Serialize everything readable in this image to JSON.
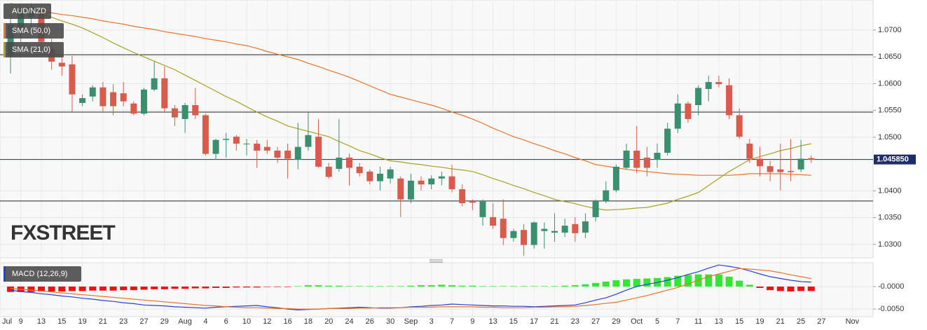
{
  "chart_data": [
    {
      "type": "candlestick",
      "title": "AUD/NZD",
      "watermark": "FXSTREET",
      "categories": [
        "Jul",
        null,
        "9",
        null,
        "13",
        null,
        "15",
        null,
        "19",
        null,
        "21",
        null,
        "23",
        null,
        "27",
        null,
        "29",
        null,
        "Aug",
        null,
        "4",
        null,
        "6",
        null,
        "10",
        null,
        "12",
        null,
        "16",
        null,
        "18",
        null,
        "20",
        null,
        "24",
        null,
        "26",
        null,
        "30",
        null,
        "Sep",
        null,
        "3",
        null,
        "7",
        null,
        "9",
        null,
        "13",
        null,
        "15",
        null,
        "17",
        null,
        "21",
        null,
        "23",
        null,
        "27",
        null,
        "29",
        null,
        "Oct",
        null,
        "5",
        null,
        "7",
        null,
        "11",
        null,
        "13",
        null,
        "15",
        null,
        "19",
        null,
        "21",
        null,
        "25",
        null,
        "27",
        null,
        null,
        "Nov"
      ],
      "open": [
        null,
        1.0652,
        1.0704,
        1.0724,
        1.0737,
        1.0665,
        1.0639,
        1.0636,
        1.0564,
        1.0576,
        1.0593,
        1.0584,
        1.0582,
        1.0563,
        1.0544,
        1.0589,
        1.061,
        1.0554,
        1.0534,
        1.056,
        1.0541,
        1.0469,
        1.0495,
        1.0501,
        1.0487,
        1.0488,
        1.0482,
        1.0475,
        1.0475,
        1.0458,
        1.0482,
        1.0501,
        1.0445,
        1.0441,
        1.0462,
        1.0445,
        1.0436,
        1.0418,
        1.0423,
        1.0423,
        1.0384,
        1.0419,
        1.0412,
        1.0423,
        1.0427,
        1.0403,
        1.0381,
        1.0351,
        1.0351,
        1.0348,
        1.0312,
        1.0327,
        1.0299,
        1.0325,
        1.0322,
        1.0322,
        1.0338,
        1.0322,
        1.0351,
        1.0381,
        1.0401,
        1.0443,
        1.0475,
        1.0462,
        1.0458,
        1.0471,
        1.0516,
        1.0563,
        1.056,
        1.059,
        1.0603,
        1.0597,
        1.0541,
        1.0488,
        1.046,
        1.0446,
        1.044,
        1.0437,
        1.044,
        1.0461,
        null,
        null,
        null,
        null
      ],
      "high": [
        null,
        1.073,
        1.0743,
        1.075,
        1.0743,
        1.0684,
        1.0652,
        1.0652,
        1.058,
        1.0597,
        1.0603,
        1.0599,
        1.0603,
        1.0567,
        1.0592,
        1.0641,
        1.0632,
        1.056,
        1.0564,
        1.0592,
        1.0544,
        1.0497,
        1.0508,
        1.0504,
        1.0497,
        1.0495,
        1.0495,
        1.0482,
        1.0488,
        1.0527,
        1.0547,
        1.0534,
        1.0452,
        1.0534,
        1.0469,
        1.0452,
        1.044,
        1.0445,
        1.0445,
        1.0427,
        1.0432,
        1.0427,
        1.0429,
        1.0436,
        1.0449,
        1.0412,
        1.0384,
        1.0384,
        1.0377,
        1.0384,
        1.0329,
        1.0338,
        1.0343,
        1.0341,
        1.0358,
        1.0348,
        1.0351,
        1.0358,
        1.0384,
        1.0418,
        1.0449,
        1.0488,
        1.0521,
        1.0482,
        1.0488,
        1.0527,
        1.058,
        1.0567,
        1.0597,
        1.0615,
        1.0615,
        1.061,
        1.0554,
        1.0497,
        1.0482,
        1.0456,
        1.0488,
        1.0497,
        1.0495,
        1.0466,
        null,
        null,
        null,
        null
      ],
      "low": [
        null,
        1.0619,
        1.0678,
        1.0704,
        1.0665,
        1.0626,
        1.0615,
        1.0547,
        1.0558,
        1.0567,
        1.0547,
        1.0541,
        1.0558,
        1.0541,
        1.0541,
        1.0586,
        1.0547,
        1.0521,
        1.0508,
        1.0534,
        1.0466,
        1.0458,
        1.0462,
        1.0475,
        1.0466,
        1.0443,
        1.0469,
        1.0452,
        1.0423,
        1.044,
        1.0475,
        1.0443,
        1.0423,
        1.0436,
        1.041,
        1.0427,
        1.0412,
        1.0401,
        1.0414,
        1.0351,
        1.0377,
        1.0401,
        1.0403,
        1.041,
        1.0397,
        1.0371,
        1.0364,
        1.0335,
        1.0329,
        1.0299,
        1.0305,
        1.0279,
        1.0292,
        1.0292,
        1.0305,
        1.0314,
        1.0305,
        1.0312,
        1.0343,
        1.0377,
        1.0397,
        1.044,
        1.0433,
        1.0427,
        1.0443,
        1.0466,
        1.0508,
        1.0527,
        1.0541,
        1.0567,
        1.0593,
        1.0534,
        1.0497,
        1.0452,
        1.0427,
        1.0418,
        1.0401,
        1.0418,
        1.0435,
        1.0452,
        null,
        null,
        null,
        null
      ],
      "close": [
        null,
        1.071,
        1.0737,
        1.0743,
        1.0678,
        1.0641,
        1.0632,
        1.058,
        1.0573,
        1.0593,
        1.0558,
        1.0558,
        1.0567,
        1.0544,
        1.0589,
        1.061,
        1.0554,
        1.0537,
        1.056,
        1.0541,
        1.0469,
        1.0495,
        1.0497,
        1.0488,
        1.0488,
        1.0475,
        1.0475,
        1.0462,
        1.046,
        1.0482,
        1.0504,
        1.0445,
        1.0426,
        1.0462,
        1.0443,
        1.0433,
        1.0418,
        1.0432,
        1.044,
        1.0384,
        1.0419,
        1.0412,
        1.0423,
        1.0427,
        1.0403,
        1.0377,
        1.0378,
        1.038,
        1.0335,
        1.0312,
        1.0325,
        1.0299,
        1.0341,
        1.0329,
        1.0325,
        1.0335,
        1.0321,
        1.0343,
        1.0381,
        1.0401,
        1.0445,
        1.0475,
        1.0443,
        1.0443,
        1.0471,
        1.0516,
        1.0563,
        1.0534,
        1.0592,
        1.0603,
        1.0599,
        1.0541,
        1.0501,
        1.046,
        1.0446,
        1.0435,
        1.0435,
        1.0435,
        1.046,
        1.0458,
        null,
        null,
        null,
        null
      ],
      "up_color": "#3a8f6f",
      "down_color": "#d95b4b",
      "series": [
        {
          "name": "SMA (50,0)",
          "color": "#e8742a",
          "values": [
            null,
            1.0743,
            1.074,
            1.0737,
            1.0735,
            1.0732,
            1.0729,
            1.0727,
            1.0724,
            1.0721,
            1.0717,
            1.0714,
            1.0711,
            1.0707,
            1.0704,
            1.0701,
            1.0697,
            1.0694,
            1.0691,
            1.0688,
            1.0684,
            1.0681,
            1.0678,
            1.0674,
            1.0671,
            1.0666,
            1.066,
            1.0655,
            1.065,
            1.0645,
            1.0638,
            1.0632,
            1.0625,
            1.0619,
            1.0612,
            1.0604,
            1.0596,
            1.0588,
            1.058,
            1.0575,
            1.057,
            1.0565,
            1.056,
            1.0554,
            1.0547,
            1.0541,
            1.0534,
            1.0526,
            1.0517,
            1.0509,
            1.0501,
            1.0495,
            1.0488,
            1.0482,
            1.0475,
            1.0469,
            1.0462,
            1.0456,
            1.0449,
            1.0446,
            1.0443,
            1.044,
            1.0438,
            1.0436,
            1.0434,
            1.0432,
            1.0431,
            1.043,
            1.0429,
            1.0429,
            1.0429,
            1.0429,
            1.043,
            1.0432,
            1.0432,
            1.0432,
            1.0432,
            1.0431,
            1.043,
            1.0429,
            null,
            null,
            null,
            null
          ]
        },
        {
          "name": "SMA (21,0)",
          "color": "#a8a222",
          "values": [
            null,
            1.075,
            1.0743,
            1.0737,
            1.073,
            1.0724,
            1.0717,
            1.0711,
            1.0704,
            1.0695,
            1.0686,
            1.0676,
            1.0667,
            1.0658,
            1.065,
            1.0642,
            1.0634,
            1.0626,
            1.0616,
            1.0606,
            1.0596,
            1.0586,
            1.0576,
            1.0567,
            1.0557,
            1.0547,
            1.0538,
            1.053,
            1.0521,
            1.0516,
            1.0511,
            1.0506,
            1.0501,
            1.0492,
            1.0484,
            1.0475,
            1.0469,
            1.0462,
            1.0456,
            1.0454,
            1.0451,
            1.0449,
            1.0446,
            1.0444,
            1.0441,
            1.0439,
            1.0436,
            1.043,
            1.0423,
            1.0417,
            1.041,
            1.0404,
            1.0397,
            1.0391,
            1.0384,
            1.038,
            1.0376,
            1.0371,
            1.0367,
            1.0364,
            1.0365,
            1.0366,
            1.0368,
            1.0369,
            1.0373,
            1.0377,
            1.0384,
            1.039,
            1.0397,
            1.041,
            1.0423,
            1.0436,
            1.0447,
            1.0458,
            1.0464,
            1.0469,
            1.0475,
            1.0479,
            1.0484,
            1.0488,
            null,
            null,
            null,
            null
          ]
        }
      ],
      "hlines": [
        1.0654,
        1.0547,
        1.0381
      ],
      "last_price": {
        "value": 1.04585,
        "label": "1.045850"
      },
      "ylim": [
        1.0275,
        1.07561
      ],
      "yticks": [
        {
          "value": 1.03,
          "label": "1.0300"
        },
        {
          "value": 1.035,
          "label": "1.0350"
        },
        {
          "value": 1.04,
          "label": "1.0400"
        },
        {
          "value": 1.05,
          "label": "1.0500"
        },
        {
          "value": 1.055,
          "label": "1.0550"
        },
        {
          "value": 1.06,
          "label": "1.0600"
        },
        {
          "value": 1.065,
          "label": "1.0650"
        },
        {
          "value": 1.07,
          "label": "1.0700"
        }
      ],
      "grid": true
    },
    {
      "type": "macd",
      "title": "MACD (12,26,9)",
      "histogram": [
        null,
        -0.0012,
        -0.0012,
        -0.0012,
        -0.0011,
        -0.0011,
        -0.0011,
        -0.001,
        -0.001,
        -0.0009,
        -0.0009,
        -0.0009,
        -0.0008,
        -0.0008,
        -0.0007,
        -0.0006,
        -0.0006,
        -0.0005,
        -0.0005,
        -0.0004,
        -0.0004,
        -0.0003,
        -0.0003,
        -0.0002,
        -0.0002,
        -0.0002,
        -0.0001,
        -0.0001,
        -0.0001,
        0.0001,
        0.0003,
        0.0003,
        0.0002,
        0.0002,
        0.0001,
        0.0001,
        0.0001,
        0.0001,
        0.0001,
        0.0001,
        0.0002,
        0.0003,
        0.0003,
        0.0004,
        0.0003,
        0.0002,
        0.0002,
        0.0001,
        0.0001,
        0.0001,
        0.0001,
        0.0001,
        0.0001,
        0.0001,
        0.0001,
        0.0002,
        0.0003,
        0.0005,
        0.0008,
        0.0011,
        0.0014,
        0.0016,
        0.0017,
        0.0018,
        0.0019,
        0.0021,
        0.0024,
        0.0026,
        0.0027,
        0.0027,
        0.0027,
        0.0022,
        0.0013,
        0.0004,
        -0.0003,
        -0.0008,
        -0.001,
        -0.0011,
        -0.001,
        -0.001,
        null,
        null,
        null,
        null
      ],
      "up_color": "#33e633",
      "down_color": "#ee1111",
      "series": [
        {
          "color": "#2a3fd6",
          "values": [
            null,
            -0.0008,
            -0.0011,
            -0.0013,
            -0.0016,
            -0.0018,
            -0.0021,
            -0.0023,
            -0.0026,
            -0.0028,
            -0.0031,
            -0.0033,
            -0.0036,
            -0.0038,
            -0.0041,
            -0.0042,
            -0.0043,
            -0.0045,
            -0.0046,
            -0.0047,
            -0.0048,
            -0.0046,
            -0.0045,
            -0.0044,
            -0.0043,
            -0.0042,
            -0.0045,
            -0.0047,
            -0.005,
            -0.0052,
            -0.0051,
            -0.005,
            -0.0049,
            -0.0048,
            -0.0047,
            -0.0046,
            -0.0047,
            -0.0048,
            -0.0048,
            -0.0047,
            -0.0045,
            -0.0044,
            -0.0042,
            -0.0041,
            -0.0039,
            -0.004,
            -0.0041,
            -0.0042,
            -0.0043,
            -0.0043,
            -0.0044,
            -0.0044,
            -0.0045,
            -0.0044,
            -0.0043,
            -0.0042,
            -0.0041,
            -0.0036,
            -0.003,
            -0.0025,
            -0.0017,
            -0.0008,
            0.0,
            0.0005,
            0.0009,
            0.0014,
            0.002,
            0.0027,
            0.0033,
            0.0041,
            0.0048,
            0.0045,
            0.0041,
            0.0035,
            0.0028,
            0.0022,
            0.0018,
            0.0014,
            0.0011,
            0.001,
            null,
            null,
            null,
            null
          ]
        },
        {
          "color": "#e8742a",
          "values": [
            null,
            -0.0004,
            -0.0006,
            -0.0008,
            -0.001,
            -0.0012,
            -0.0014,
            -0.0016,
            -0.0018,
            -0.002,
            -0.0022,
            -0.0024,
            -0.0026,
            -0.0028,
            -0.003,
            -0.0032,
            -0.0034,
            -0.0036,
            -0.0038,
            -0.004,
            -0.0042,
            -0.0043,
            -0.0045,
            -0.0046,
            -0.0047,
            -0.0047,
            -0.0048,
            -0.0049,
            -0.0049,
            -0.005,
            -0.005,
            -0.005,
            -0.0049,
            -0.0049,
            -0.0049,
            -0.0048,
            -0.0048,
            -0.0047,
            -0.0047,
            -0.0047,
            -0.0046,
            -0.0046,
            -0.0046,
            -0.0045,
            -0.0045,
            -0.0045,
            -0.0045,
            -0.0046,
            -0.0046,
            -0.0047,
            -0.0047,
            -0.0047,
            -0.0046,
            -0.0046,
            -0.0045,
            -0.0045,
            -0.0044,
            -0.0042,
            -0.004,
            -0.0037,
            -0.0035,
            -0.003,
            -0.0025,
            -0.002,
            -0.0014,
            -0.0008,
            -0.0002,
            0.0006,
            0.0014,
            0.0022,
            0.0028,
            0.0034,
            0.004,
            0.0039,
            0.0037,
            0.0035,
            0.0031,
            0.0026,
            0.0022,
            0.0018,
            null,
            null,
            null,
            null
          ]
        }
      ],
      "ylim": [
        -0.0067,
        0.0053
      ],
      "yticks": [
        {
          "value": 0,
          "label": "-0.0000"
        },
        {
          "value": -0.005,
          "label": "-0.0050"
        }
      ]
    }
  ]
}
